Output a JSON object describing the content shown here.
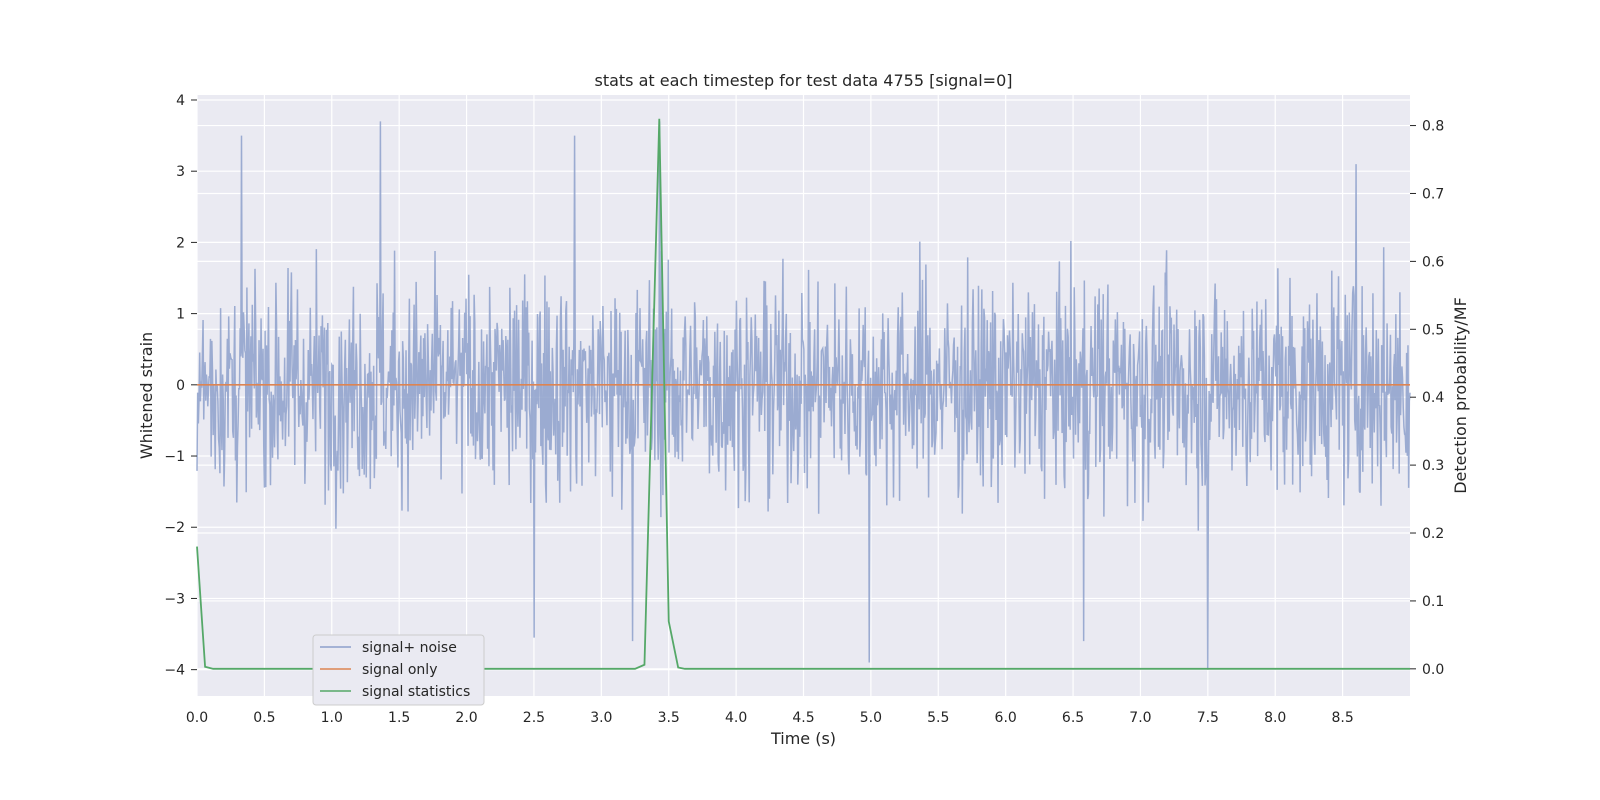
{
  "chart_data": {
    "type": "line",
    "title": "stats at each timestep for test data 4755 [signal=0]",
    "xlabel": "Time (s)",
    "ylabel_left": "Whitened strain",
    "ylabel_right": "Detection probability/MF",
    "xlim": [
      0.0,
      9.0
    ],
    "ylim_left": [
      -4.37,
      4.07
    ],
    "ylim_right": [
      -0.04,
      0.845
    ],
    "x_ticks": [
      "0.0",
      "0.5",
      "1.0",
      "1.5",
      "2.0",
      "2.5",
      "3.0",
      "3.5",
      "4.0",
      "4.5",
      "5.0",
      "5.5",
      "6.0",
      "6.5",
      "7.0",
      "7.5",
      "8.0",
      "8.5"
    ],
    "x_tick_values": [
      0.0,
      0.5,
      1.0,
      1.5,
      2.0,
      2.5,
      3.0,
      3.5,
      4.0,
      4.5,
      5.0,
      5.5,
      6.0,
      6.5,
      7.0,
      7.5,
      8.0,
      8.5
    ],
    "y_left_ticks": [
      "4",
      "3",
      "2",
      "1",
      "0",
      "−1",
      "−2",
      "−3",
      "−4"
    ],
    "y_left_tick_values": [
      4,
      3,
      2,
      1,
      0,
      -1,
      -2,
      -3,
      -4
    ],
    "y_right_ticks": [
      "0.8",
      "0.7",
      "0.6",
      "0.5",
      "0.4",
      "0.3",
      "0.2",
      "0.1",
      "0.0"
    ],
    "y_right_tick_values": [
      0.8,
      0.7,
      0.6,
      0.5,
      0.4,
      0.3,
      0.2,
      0.1,
      0.0
    ],
    "grid": true,
    "legend_position": "lower-left",
    "legend": [
      {
        "name": "signal+ noise",
        "color": "#8da0cb"
      },
      {
        "name": "signal only",
        "color": "#dd8452"
      },
      {
        "name": "signal statistics",
        "color": "#55a868"
      }
    ],
    "series": [
      {
        "name": "signal+ noise",
        "axis": "left",
        "color": "#8da0cb",
        "style": "noise",
        "x_range": [
          0.0,
          9.0
        ],
        "samples": 1800,
        "amplitude_range": [
          -4.0,
          3.7
        ],
        "note_peaks": [
          [
            0.33,
            3.5
          ],
          [
            1.36,
            3.7
          ],
          [
            2.8,
            3.5
          ],
          [
            3.43,
            3.7
          ],
          [
            8.6,
            3.1
          ],
          [
            7.5,
            -4.0
          ],
          [
            4.99,
            -3.9
          ],
          [
            2.5,
            -3.55
          ],
          [
            3.23,
            -3.6
          ],
          [
            6.58,
            -3.6
          ]
        ]
      },
      {
        "name": "signal only",
        "axis": "left",
        "color": "#dd8452",
        "x": [
          0.0,
          9.0
        ],
        "y": [
          0.0,
          0.0
        ]
      },
      {
        "name": "signal statistics",
        "axis": "right",
        "color": "#55a868",
        "x": [
          0.0,
          0.06,
          0.12,
          0.5,
          1.0,
          2.0,
          3.0,
          3.25,
          3.32,
          3.43,
          3.5,
          3.57,
          3.62,
          4.0,
          5.0,
          6.0,
          7.0,
          8.0,
          9.0
        ],
        "y": [
          0.18,
          0.003,
          0.0,
          0.0,
          0.0,
          0.0,
          0.0,
          0.0,
          0.006,
          0.81,
          0.07,
          0.002,
          0.0,
          0.0,
          0.0,
          0.0,
          0.0,
          0.0,
          0.0
        ]
      }
    ]
  }
}
